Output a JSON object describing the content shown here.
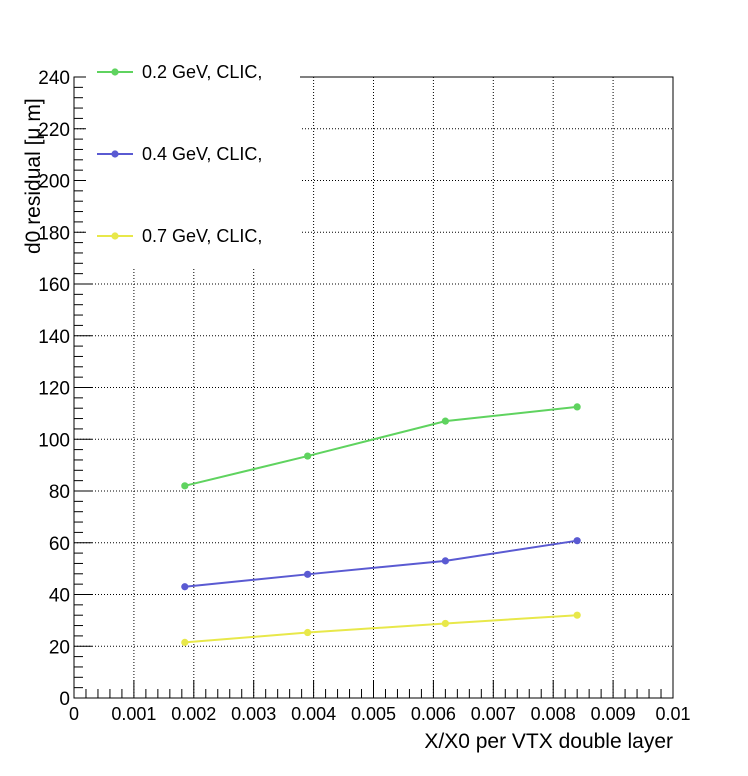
{
  "chart_data": {
    "type": "line",
    "title": "",
    "xlabel": "X/X0 per VTX double layer",
    "ylabel": "d0 residual [μ m]",
    "xlim": [
      0,
      0.01
    ],
    "ylim": [
      0,
      240
    ],
    "x_ticks": [
      "0",
      "0.001",
      "0.002",
      "0.003",
      "0.004",
      "0.005",
      "0.006",
      "0.007",
      "0.008",
      "0.009",
      "0.01"
    ],
    "y_ticks": [
      "0",
      "20",
      "40",
      "60",
      "80",
      "100",
      "120",
      "140",
      "160",
      "180",
      "200",
      "220",
      "240"
    ],
    "grid": true,
    "legend_position": "top-left",
    "x": [
      0.00185,
      0.0039,
      0.0062,
      0.0084
    ],
    "series": [
      {
        "name": "0.2 GeV, CLIC,",
        "color": "#5fd35f",
        "values": [
          82,
          93.5,
          107,
          112.5
        ]
      },
      {
        "name": "0.4 GeV, CLIC,",
        "color": "#5a5ad2",
        "values": [
          43,
          47.8,
          53,
          60.8
        ]
      },
      {
        "name": "0.7 GeV, CLIC,",
        "color": "#e8e84a",
        "values": [
          21.5,
          25.3,
          28.8,
          32
        ]
      }
    ]
  }
}
